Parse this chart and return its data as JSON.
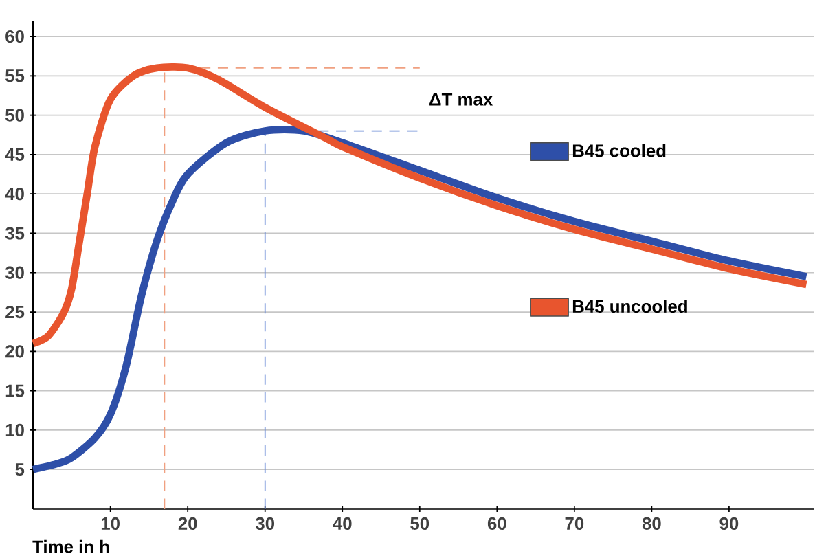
{
  "chart_data": {
    "type": "line",
    "xlabel": "Time in h",
    "xlim": [
      0,
      101
    ],
    "ylim": [
      0,
      62
    ],
    "legend": "right",
    "xticks": [
      10,
      20,
      30,
      40,
      50,
      60,
      70,
      80,
      90
    ],
    "yticks": [
      5,
      10,
      15,
      20,
      25,
      30,
      35,
      40,
      45,
      50,
      55,
      60
    ],
    "grid": "y",
    "marker": "none",
    "line_style": "solid",
    "series": [
      {
        "name": "B45 cooled",
        "color": "#2e4fa8",
        "x": [
          0,
          3,
          5,
          8,
          10,
          12,
          14,
          16,
          18,
          20,
          25,
          30,
          35,
          40,
          50,
          60,
          70,
          80,
          90,
          100
        ],
        "values": [
          5,
          5.7,
          6.5,
          9,
          12,
          18,
          27,
          34,
          39,
          42.5,
          46.5,
          48,
          48,
          46.5,
          43,
          39.5,
          36.5,
          34,
          31.5,
          29.5
        ]
      },
      {
        "name": "B45 uncooled",
        "color": "#e8552e",
        "x": [
          0,
          2,
          4,
          5,
          6,
          7,
          8,
          10,
          13,
          16,
          20,
          24,
          30,
          38,
          40,
          50,
          60,
          70,
          80,
          90,
          100
        ],
        "values": [
          21,
          22,
          25,
          28,
          34,
          40,
          46,
          52,
          55,
          56,
          56,
          54.5,
          51,
          47,
          46,
          42,
          38.5,
          35.5,
          33,
          30.5,
          28.5
        ]
      }
    ],
    "ref_lines": [
      {
        "axis": "x",
        "value": 17,
        "color": "#f0a080",
        "line_style": "dashed"
      },
      {
        "axis": "x",
        "value": 30,
        "color": "#7090d8",
        "line_style": "dashed"
      },
      {
        "axis": "y",
        "value": 56,
        "color": "#f0a080",
        "line_style": "dashed"
      },
      {
        "axis": "y",
        "value": 48,
        "color": "#7090d8",
        "line_style": "dashed"
      }
    ],
    "annotations": [
      "ΔT max"
    ]
  }
}
